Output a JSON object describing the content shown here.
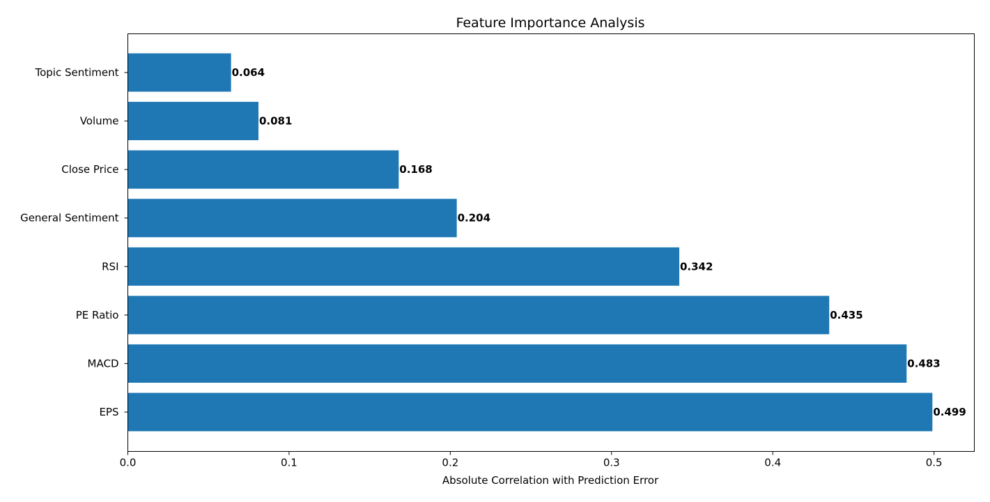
{
  "chart_data": {
    "type": "bar",
    "orientation": "horizontal",
    "title": "Feature Importance Analysis",
    "xlabel": "Absolute Correlation with Prediction Error",
    "ylabel": "",
    "categories": [
      "EPS",
      "MACD",
      "PE Ratio",
      "RSI",
      "General Sentiment",
      "Close Price",
      "Volume",
      "Topic Sentiment"
    ],
    "values": [
      0.499,
      0.483,
      0.435,
      0.342,
      0.204,
      0.168,
      0.081,
      0.064
    ],
    "data_labels": [
      "0.499",
      "0.483",
      "0.435",
      "0.342",
      "0.204",
      "0.168",
      "0.081",
      "0.064"
    ],
    "xlim": [
      0,
      0.525
    ],
    "xticks": [
      0.0,
      0.1,
      0.2,
      0.3,
      0.4,
      0.5
    ],
    "xtick_labels": [
      "0.0",
      "0.1",
      "0.2",
      "0.3",
      "0.4",
      "0.5"
    ],
    "bar_color": "#1f77b4",
    "grid": false,
    "legend": "none"
  }
}
